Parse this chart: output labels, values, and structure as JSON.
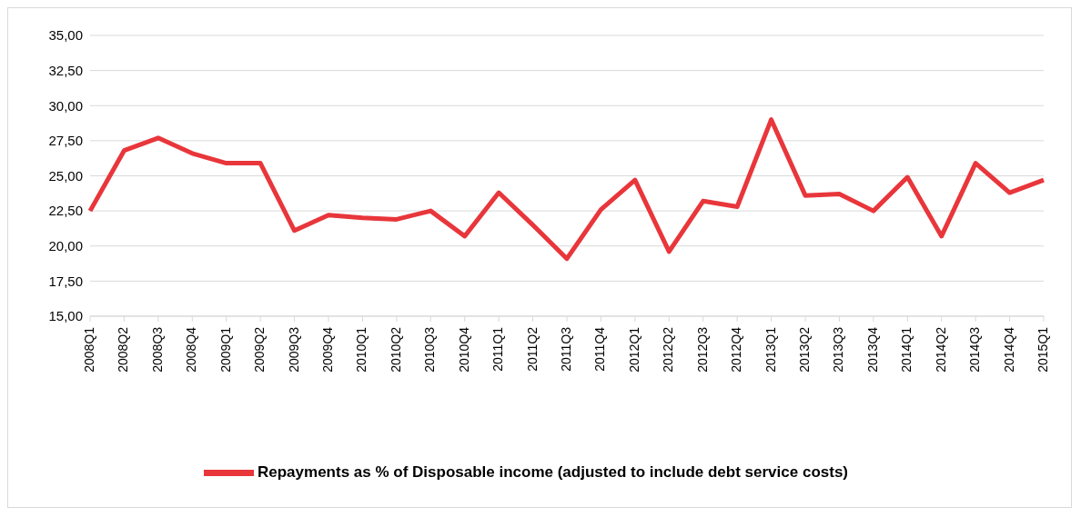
{
  "chart_data": {
    "type": "line",
    "categories": [
      "2008Q1",
      "2008Q2",
      "2008Q3",
      "2008Q4",
      "2009Q1",
      "2009Q2",
      "2009Q3",
      "2009Q4",
      "2010Q1",
      "2010Q2",
      "2010Q3",
      "2010Q4",
      "2011Q1",
      "2011Q2",
      "2011Q3",
      "2011Q4",
      "2012Q1",
      "2012Q2",
      "2012Q3",
      "2012Q4",
      "2013Q1",
      "2013Q2",
      "2013Q3",
      "2013Q4",
      "2014Q1",
      "2014Q2",
      "2014Q3",
      "2014Q4",
      "2015Q1"
    ],
    "series": [
      {
        "name": "Repayments as % of Disposable income (adjusted to include debt service costs)",
        "color": "#e8363b",
        "values": [
          22.5,
          26.8,
          27.7,
          26.6,
          25.9,
          25.9,
          21.1,
          22.2,
          22.0,
          21.9,
          22.5,
          20.7,
          23.8,
          21.5,
          19.1,
          22.6,
          24.7,
          19.6,
          23.2,
          22.8,
          29.0,
          23.6,
          23.7,
          22.5,
          24.9,
          20.7,
          25.9,
          23.8,
          24.7
        ]
      }
    ],
    "ylim": [
      15,
      35
    ],
    "yticks": [
      {
        "value": 15,
        "label": "15,00"
      },
      {
        "value": 17.5,
        "label": "17,50"
      },
      {
        "value": 20,
        "label": "20,00"
      },
      {
        "value": 22.5,
        "label": "22,50"
      },
      {
        "value": 25,
        "label": "25,00"
      },
      {
        "value": 27.5,
        "label": "27,50"
      },
      {
        "value": 30,
        "label": "30,00"
      },
      {
        "value": 32.5,
        "label": "32,50"
      },
      {
        "value": 35,
        "label": "35,00"
      }
    ],
    "grid": "y",
    "legend": "bottom",
    "marker": "none",
    "line_style": "solid"
  }
}
